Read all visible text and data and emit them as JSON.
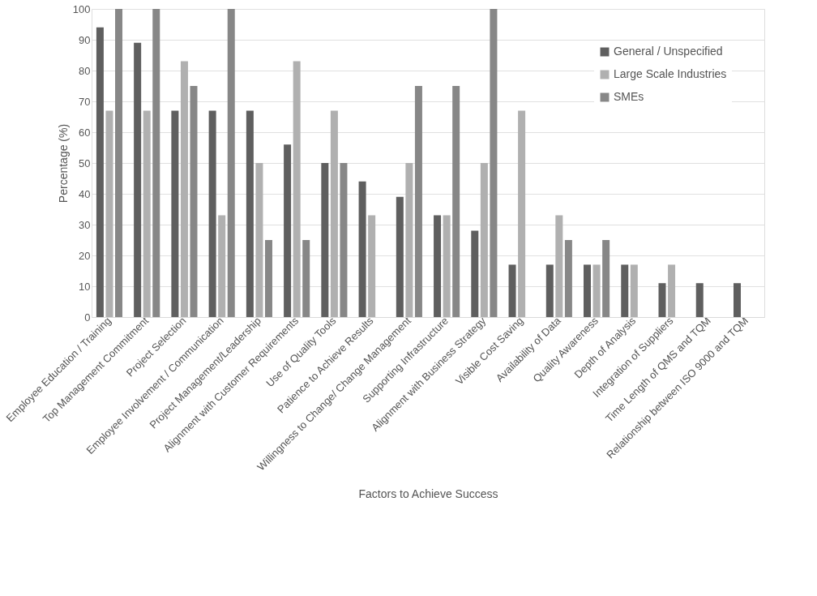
{
  "chart_data": {
    "type": "bar",
    "xlabel": "Factors to Achieve Success",
    "ylabel": "Percentage (%)",
    "categories": [
      "Employee Education / Training",
      "Top Management Commitment",
      "Project Selection",
      "Employee Involvement / Communication",
      "Project Management/Leadership",
      "Alignment with Customer Requirements",
      "Use of Quality Tools",
      "Patience to Achieve Results",
      "Willingness to Change/ Change Management",
      "Supporting Infrastructure",
      "Alignment with Business Strategy",
      "Visible Cost Saving",
      "Availability of Data",
      "Quality Awareness",
      "Depth of Analysis",
      "Integration of Suppliers",
      "Time Length of QMS and TQM",
      "Relationship between ISO 9000 and TQM"
    ],
    "series": [
      {
        "name": "General / Unspecified",
        "color": "#5f5f5f",
        "values": [
          94,
          89,
          67,
          67,
          67,
          56,
          50,
          44,
          39,
          33,
          28,
          17,
          17,
          17,
          17,
          11,
          11,
          11
        ]
      },
      {
        "name": "Large Scale Industries",
        "color": "#b0b0b0",
        "values": [
          67,
          67,
          83,
          33,
          50,
          83,
          67,
          33,
          50,
          33,
          50,
          67,
          33,
          17,
          17,
          17,
          null,
          null
        ]
      },
      {
        "name": "SMEs",
        "color": "#878787",
        "values": [
          100,
          100,
          75,
          100,
          25,
          25,
          50,
          null,
          75,
          75,
          100,
          null,
          25,
          25,
          null,
          null,
          null,
          null
        ]
      }
    ],
    "ylim": [
      0,
      100
    ],
    "yticks": [
      0,
      10,
      20,
      30,
      40,
      50,
      60,
      70,
      80,
      90,
      100
    ],
    "grid": "y",
    "legend": "top right"
  }
}
